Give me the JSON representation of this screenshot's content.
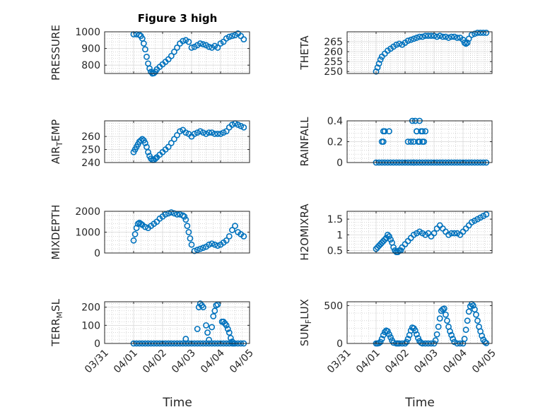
{
  "figure": {
    "title": "Figure 3 high",
    "marker_color": "#0072BD",
    "grid_major_color": "#d9d9d9",
    "grid_minor_color": "#bdbdbd",
    "axis_color": "#262626",
    "xlabel": "Time"
  },
  "chart_data": [
    {
      "type": "scatter",
      "marker": "circle",
      "ylabel": "PRESSURE",
      "ylim": [
        750,
        1000
      ],
      "yticks": [
        800,
        900,
        1000
      ],
      "xlim": [
        0,
        5
      ],
      "xticks": [
        "03/31",
        "04/01",
        "04/02",
        "04/03",
        "04/04",
        "04/05"
      ],
      "show_xticks": false,
      "x": [
        1.0,
        1.1,
        1.2,
        1.25,
        1.3,
        1.35,
        1.4,
        1.45,
        1.5,
        1.55,
        1.6,
        1.65,
        1.7,
        1.75,
        1.8,
        1.9,
        2.0,
        2.1,
        2.2,
        2.3,
        2.4,
        2.5,
        2.6,
        2.7,
        2.8,
        2.9,
        3.0,
        3.1,
        3.2,
        3.3,
        3.4,
        3.5,
        3.6,
        3.7,
        3.8,
        3.9,
        4.0,
        4.1,
        4.2,
        4.3,
        4.4,
        4.5,
        4.6,
        4.7,
        4.8
      ],
      "y": [
        985,
        985,
        982,
        975,
        960,
        930,
        895,
        850,
        810,
        780,
        760,
        750,
        752,
        760,
        775,
        790,
        805,
        820,
        835,
        855,
        880,
        905,
        930,
        945,
        950,
        940,
        905,
        910,
        920,
        930,
        925,
        920,
        910,
        905,
        915,
        905,
        930,
        940,
        960,
        970,
        975,
        980,
        990,
        975,
        955
      ]
    },
    {
      "type": "scatter",
      "marker": "circle",
      "ylabel": "THETA",
      "ylim": [
        249,
        270
      ],
      "yticks": [
        250,
        255,
        260,
        265
      ],
      "xlim": [
        0,
        5
      ],
      "xticks": [
        "03/31",
        "04/01",
        "04/02",
        "04/03",
        "04/04",
        "04/05"
      ],
      "show_xticks": false,
      "x": [
        1.0,
        1.05,
        1.1,
        1.15,
        1.2,
        1.3,
        1.4,
        1.5,
        1.6,
        1.7,
        1.8,
        1.9,
        2.0,
        2.1,
        2.2,
        2.3,
        2.4,
        2.5,
        2.6,
        2.7,
        2.8,
        2.9,
        3.0,
        3.1,
        3.2,
        3.3,
        3.4,
        3.5,
        3.6,
        3.7,
        3.8,
        3.9,
        4.0,
        4.05,
        4.1,
        4.15,
        4.2,
        4.3,
        4.4,
        4.5,
        4.6,
        4.7,
        4.8
      ],
      "y": [
        250,
        252,
        254,
        256,
        257.5,
        259,
        260.5,
        261.5,
        262.5,
        263.5,
        264,
        263.5,
        264.5,
        265.5,
        266,
        266.5,
        267,
        267.5,
        267.5,
        268,
        268,
        268,
        268,
        267.5,
        268,
        267.5,
        267.5,
        267,
        267.5,
        267.5,
        267,
        267,
        266,
        264.5,
        264,
        264.5,
        266.5,
        268.5,
        269,
        269.5,
        269.5,
        269.5,
        269.5
      ]
    },
    {
      "type": "scatter",
      "marker": "circle",
      "ylabel": "AIR_TEMP",
      "ylim": [
        240,
        272
      ],
      "yticks": [
        240,
        250,
        260
      ],
      "xlim": [
        0,
        5
      ],
      "xticks": [
        "03/31",
        "04/01",
        "04/02",
        "04/03",
        "04/04",
        "04/05"
      ],
      "show_xticks": false,
      "x": [
        1.0,
        1.05,
        1.1,
        1.15,
        1.2,
        1.25,
        1.3,
        1.35,
        1.4,
        1.45,
        1.5,
        1.55,
        1.6,
        1.65,
        1.7,
        1.75,
        1.8,
        1.9,
        2.0,
        2.1,
        2.2,
        2.3,
        2.4,
        2.5,
        2.6,
        2.7,
        2.8,
        2.9,
        3.0,
        3.1,
        3.2,
        3.3,
        3.4,
        3.5,
        3.6,
        3.7,
        3.8,
        3.9,
        4.0,
        4.1,
        4.2,
        4.3,
        4.4,
        4.5,
        4.6,
        4.7,
        4.8
      ],
      "y": [
        248,
        250,
        252,
        254,
        256,
        257,
        258,
        257,
        255,
        252,
        248,
        245,
        243,
        242,
        242,
        243,
        244,
        246,
        248,
        250,
        252,
        255,
        258,
        261,
        264,
        265,
        263,
        262,
        260,
        262,
        263,
        264,
        263,
        262,
        263,
        263,
        262,
        262,
        262,
        263,
        264,
        267,
        269,
        270,
        269,
        268,
        267
      ]
    },
    {
      "type": "scatter",
      "marker": "circle",
      "ylabel": "RAINFALL",
      "ylim": [
        0,
        0.4
      ],
      "yticks": [
        0,
        0.2,
        0.4
      ],
      "xlim": [
        0,
        5
      ],
      "xticks": [
        "03/31",
        "04/01",
        "04/02",
        "04/03",
        "04/04",
        "04/05"
      ],
      "show_xticks": false,
      "x": [
        1.0,
        1.1,
        1.2,
        1.3,
        1.4,
        1.5,
        1.6,
        1.7,
        1.8,
        1.9,
        2.0,
        2.1,
        2.2,
        2.3,
        2.4,
        2.5,
        2.6,
        2.7,
        2.8,
        2.9,
        3.0,
        3.1,
        3.2,
        3.3,
        3.4,
        3.5,
        3.6,
        3.7,
        3.8,
        3.9,
        4.0,
        4.1,
        4.2,
        4.3,
        4.4,
        4.5,
        4.6,
        4.7,
        4.8,
        1.2,
        1.25,
        1.25,
        1.3,
        1.45,
        2.1,
        2.2,
        2.25,
        2.3,
        2.35,
        2.4,
        2.45,
        2.5,
        2.55,
        2.6,
        2.65,
        2.7,
        2.3,
        2.4,
        2.5,
        2.6
      ],
      "y": [
        0,
        0,
        0,
        0,
        0,
        0,
        0,
        0,
        0,
        0,
        0,
        0,
        0,
        0,
        0,
        0,
        0,
        0,
        0,
        0,
        0,
        0,
        0,
        0,
        0,
        0,
        0,
        0,
        0,
        0,
        0,
        0,
        0,
        0,
        0,
        0,
        0,
        0,
        0,
        0.2,
        0.3,
        0.2,
        0.3,
        0.3,
        0.2,
        0.2,
        0.4,
        0.2,
        0.4,
        0.3,
        0.2,
        0.4,
        0.3,
        0.3,
        0.2,
        0.3,
        0,
        0.3,
        0.2,
        0.2
      ]
    },
    {
      "type": "scatter",
      "marker": "circle",
      "ylabel": "MIXDEPTH",
      "ylim": [
        0,
        2000
      ],
      "yticks": [
        0,
        1000,
        2000
      ],
      "xlim": [
        0,
        5
      ],
      "xticks": [
        "03/31",
        "04/01",
        "04/02",
        "04/03",
        "04/04",
        "04/05"
      ],
      "show_xticks": false,
      "x": [
        1.0,
        1.05,
        1.1,
        1.15,
        1.2,
        1.25,
        1.3,
        1.4,
        1.5,
        1.6,
        1.7,
        1.8,
        1.9,
        2.0,
        2.1,
        2.2,
        2.3,
        2.4,
        2.5,
        2.6,
        2.7,
        2.75,
        2.8,
        2.85,
        2.9,
        2.95,
        3.0,
        3.1,
        3.2,
        3.3,
        3.4,
        3.5,
        3.6,
        3.7,
        3.8,
        3.9,
        4.0,
        4.1,
        4.2,
        4.3,
        4.4,
        4.5,
        4.6,
        4.7,
        4.8
      ],
      "y": [
        600,
        900,
        1200,
        1400,
        1450,
        1400,
        1350,
        1250,
        1200,
        1300,
        1400,
        1500,
        1650,
        1750,
        1850,
        1900,
        1950,
        1900,
        1850,
        1850,
        1800,
        1750,
        1600,
        1300,
        1000,
        700,
        400,
        100,
        150,
        200,
        250,
        300,
        400,
        450,
        400,
        350,
        400,
        500,
        600,
        800,
        1100,
        1300,
        1000,
        900,
        800
      ]
    },
    {
      "type": "scatter",
      "marker": "circle",
      "ylabel": "H2OMIXRA",
      "ylim": [
        0.42,
        1.75
      ],
      "yticks": [
        0.5,
        1,
        1.5
      ],
      "xlim": [
        0,
        5
      ],
      "xticks": [
        "03/31",
        "04/01",
        "04/02",
        "04/03",
        "04/04",
        "04/05"
      ],
      "show_xticks": false,
      "x": [
        1.0,
        1.05,
        1.1,
        1.15,
        1.2,
        1.25,
        1.3,
        1.35,
        1.4,
        1.45,
        1.5,
        1.55,
        1.6,
        1.65,
        1.7,
        1.75,
        1.8,
        1.85,
        1.9,
        2.0,
        2.1,
        2.2,
        2.3,
        2.4,
        2.5,
        2.6,
        2.7,
        2.8,
        2.9,
        3.0,
        3.1,
        3.2,
        3.3,
        3.4,
        3.5,
        3.6,
        3.7,
        3.8,
        3.9,
        4.0,
        4.1,
        4.2,
        4.3,
        4.4,
        4.5,
        4.6,
        4.7,
        4.8
      ],
      "y": [
        0.55,
        0.6,
        0.65,
        0.7,
        0.75,
        0.8,
        0.85,
        0.9,
        1.0,
        0.95,
        0.85,
        0.75,
        0.6,
        0.5,
        0.45,
        0.45,
        0.5,
        0.5,
        0.6,
        0.7,
        0.8,
        0.9,
        1.0,
        1.05,
        1.1,
        1.05,
        1.0,
        1.05,
        0.95,
        1.05,
        1.2,
        1.3,
        1.2,
        1.1,
        1.0,
        1.05,
        1.05,
        1.05,
        1.0,
        1.1,
        1.2,
        1.3,
        1.4,
        1.45,
        1.5,
        1.55,
        1.6,
        1.65
      ]
    },
    {
      "type": "scatter",
      "marker": "circle",
      "ylabel": "TERR_MSL",
      "ylim": [
        0,
        230
      ],
      "yticks": [
        0,
        100,
        200
      ],
      "xlim": [
        0,
        5
      ],
      "xticks": [
        "03/31",
        "04/01",
        "04/02",
        "04/03",
        "04/04",
        "04/05"
      ],
      "show_xticks": true,
      "x": [
        1.0,
        1.1,
        1.2,
        1.3,
        1.4,
        1.5,
        1.6,
        1.7,
        1.8,
        1.9,
        2.0,
        2.1,
        2.2,
        2.3,
        2.4,
        2.5,
        2.6,
        2.7,
        2.8,
        2.9,
        3.0,
        3.1,
        3.2,
        3.3,
        3.4,
        3.5,
        3.6,
        3.7,
        3.8,
        3.9,
        4.0,
        4.1,
        4.2,
        4.3,
        4.4,
        4.5,
        4.6,
        4.7,
        4.8,
        2.8,
        3.2,
        3.25,
        3.3,
        3.35,
        3.4,
        3.5,
        3.55,
        3.6,
        3.7,
        3.75,
        3.8,
        3.85,
        3.9,
        4.05,
        4.1,
        4.15,
        4.2,
        4.25,
        4.3,
        4.35,
        4.4,
        4.45
      ],
      "y": [
        0,
        0,
        0,
        0,
        0,
        0,
        0,
        0,
        0,
        0,
        0,
        0,
        0,
        0,
        0,
        0,
        0,
        0,
        0,
        0,
        0,
        0,
        0,
        0,
        0,
        0,
        0,
        0,
        0,
        0,
        0,
        0,
        0,
        0,
        0,
        0,
        0,
        0,
        0,
        25,
        80,
        200,
        220,
        210,
        200,
        100,
        60,
        20,
        90,
        150,
        180,
        210,
        215,
        120,
        120,
        110,
        100,
        80,
        60,
        30,
        10,
        0
      ]
    },
    {
      "type": "scatter",
      "marker": "circle",
      "ylabel": "SUN_FLUX",
      "ylim": [
        0,
        550
      ],
      "yticks": [
        0,
        500
      ],
      "xlim": [
        0,
        5
      ],
      "xticks": [
        "03/31",
        "04/01",
        "04/02",
        "04/03",
        "04/04",
        "04/05"
      ],
      "show_xticks": true,
      "x": [
        1.0,
        1.05,
        1.1,
        1.15,
        1.2,
        1.25,
        1.3,
        1.35,
        1.4,
        1.45,
        1.5,
        1.55,
        1.6,
        1.7,
        1.75,
        1.8,
        1.9,
        2.0,
        2.05,
        2.1,
        2.15,
        2.2,
        2.25,
        2.3,
        2.35,
        2.4,
        2.45,
        2.5,
        2.55,
        2.6,
        2.7,
        2.8,
        2.9,
        3.0,
        3.05,
        3.1,
        3.15,
        3.2,
        3.25,
        3.3,
        3.35,
        3.4,
        3.45,
        3.5,
        3.55,
        3.6,
        3.65,
        3.7,
        3.8,
        3.9,
        4.0,
        4.05,
        4.1,
        4.15,
        4.2,
        4.25,
        4.3,
        4.35,
        4.4,
        4.45,
        4.5,
        4.55,
        4.6,
        4.65,
        4.7,
        4.75,
        4.8
      ],
      "y": [
        0,
        0,
        5,
        20,
        60,
        110,
        150,
        170,
        160,
        120,
        80,
        40,
        10,
        0,
        0,
        0,
        0,
        0,
        20,
        60,
        110,
        170,
        210,
        200,
        170,
        120,
        70,
        30,
        10,
        0,
        0,
        0,
        0,
        0,
        40,
        120,
        220,
        330,
        430,
        450,
        460,
        380,
        300,
        220,
        160,
        110,
        60,
        20,
        0,
        0,
        0,
        60,
        180,
        300,
        420,
        490,
        520,
        500,
        450,
        380,
        300,
        220,
        160,
        100,
        50,
        20,
        5
      ]
    }
  ]
}
